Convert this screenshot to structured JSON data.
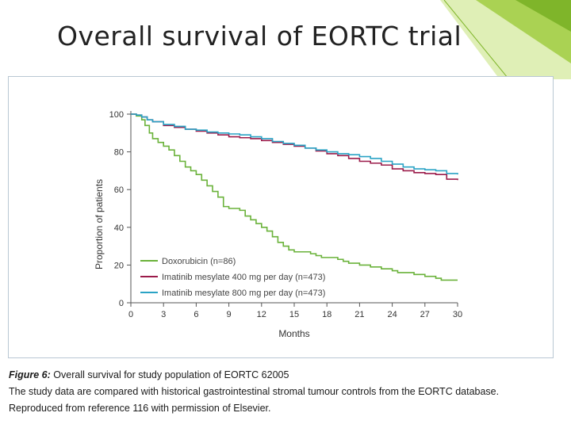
{
  "slide": {
    "title": "Overall survival of EORTC trial"
  },
  "decor": {
    "accent_light": "#c5e17a",
    "accent_mid": "#9ccb3b",
    "accent_dark": "#7fb52a"
  },
  "caption": {
    "label": "Figure 6:",
    "text1": "Overall survival for study population of EORTC 62005",
    "text2": "The study data are compared with historical gastrointestinal stromal tumour controls from the EORTC database.",
    "text3": "Reproduced from reference 116 with permission of Elsevier."
  },
  "chart_data": {
    "type": "line",
    "title": "",
    "xlabel": "Months",
    "ylabel": "Proportion of patients",
    "xlim": [
      0,
      30
    ],
    "ylim": [
      0,
      100
    ],
    "xticks": [
      0,
      3,
      6,
      9,
      12,
      15,
      18,
      21,
      24,
      27,
      30
    ],
    "yticks": [
      0,
      20,
      40,
      60,
      80,
      100
    ],
    "grid": false,
    "legend_position": "bottom-left",
    "series": [
      {
        "name": "Doxorubicin (n=86)",
        "color": "#6ab23a",
        "x": [
          0,
          0.5,
          1,
          1.3,
          1.7,
          2,
          2.5,
          3,
          3.5,
          4,
          4.5,
          5,
          5.5,
          6,
          6.5,
          7,
          7.5,
          8,
          8.5,
          9,
          9.5,
          10,
          10.5,
          11,
          11.5,
          12,
          12.5,
          13,
          13.5,
          14,
          14.5,
          15,
          15.5,
          16,
          16.5,
          17,
          17.5,
          18,
          18.5,
          19,
          19.5,
          20,
          20.5,
          21,
          21.5,
          22,
          22.5,
          23,
          23.5,
          24,
          24.5,
          25,
          25.5,
          26,
          26.5,
          27,
          27.5,
          28,
          28.5,
          29,
          29.5,
          30
        ],
        "y": [
          100,
          99,
          97,
          94,
          90,
          87,
          85,
          83,
          81,
          78,
          75,
          72,
          70,
          68,
          65,
          62,
          59,
          56,
          51,
          50,
          50,
          49,
          46,
          44,
          42,
          40,
          38,
          35,
          32,
          30,
          28,
          27,
          27,
          27,
          26,
          25,
          24,
          24,
          24,
          23,
          22,
          21,
          21,
          20,
          20,
          19,
          19,
          18,
          18,
          17,
          16,
          16,
          16,
          15,
          15,
          14,
          14,
          13,
          12,
          12,
          12,
          12
        ]
      },
      {
        "name": "Imatinib mesylate 400 mg per day (n=473)",
        "color": "#9b1b4a",
        "x": [
          0,
          0.5,
          1,
          1.5,
          2,
          3,
          4,
          5,
          6,
          7,
          8,
          9,
          10,
          11,
          12,
          13,
          14,
          15,
          16,
          17,
          18,
          19,
          20,
          21,
          22,
          23,
          24,
          25,
          26,
          27,
          28,
          29,
          30
        ],
        "y": [
          100,
          99.5,
          98.5,
          97,
          96,
          94,
          93,
          92,
          91,
          90,
          89,
          88,
          87.5,
          87,
          86,
          85,
          84,
          83,
          82,
          80.5,
          79,
          78,
          76.5,
          75,
          74,
          73,
          71,
          70,
          69,
          68.5,
          68,
          65.5,
          65
        ]
      },
      {
        "name": "Imatinib mesylate 800 mg per day (n=473)",
        "color": "#2aa3c5",
        "x": [
          0,
          0.5,
          1,
          1.5,
          2,
          3,
          4,
          5,
          6,
          7,
          8,
          9,
          10,
          11,
          12,
          13,
          14,
          15,
          16,
          17,
          18,
          19,
          20,
          21,
          22,
          23,
          24,
          25,
          26,
          27,
          28,
          29,
          30
        ],
        "y": [
          100,
          99.5,
          98.5,
          97,
          96,
          94.5,
          93.5,
          92,
          91.5,
          90.5,
          90,
          89.5,
          89,
          88,
          87,
          85.5,
          84.5,
          83.5,
          82,
          81,
          80,
          79,
          78.5,
          77.5,
          76.5,
          75,
          73.5,
          72,
          71,
          70.5,
          70,
          68.5,
          68
        ]
      }
    ]
  }
}
